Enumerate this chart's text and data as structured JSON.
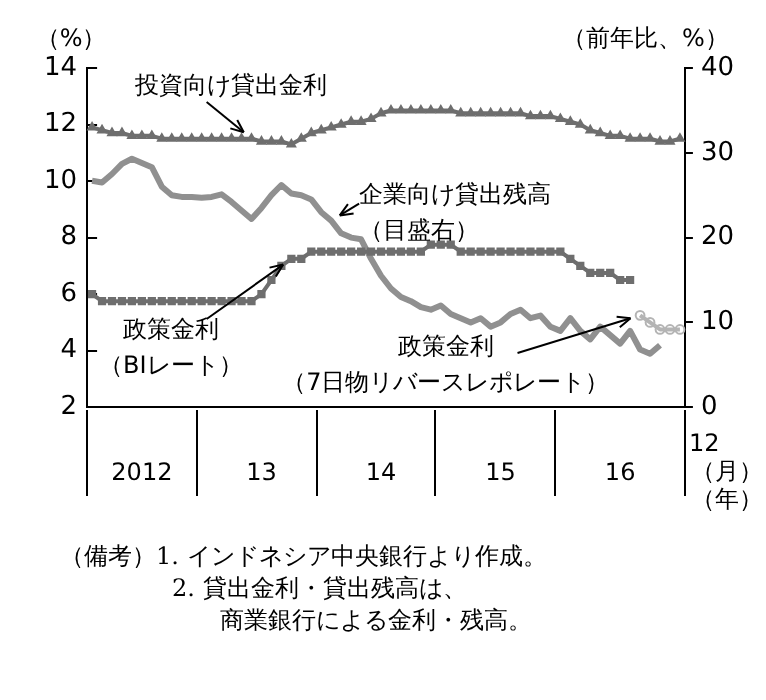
{
  "chart_data": {
    "type": "line",
    "categories": [
      null,
      null,
      null,
      null,
      null,
      "2012",
      null,
      null,
      null,
      null,
      null,
      null,
      null,
      null,
      null,
      null,
      null,
      "13",
      null,
      null,
      null,
      null,
      null,
      null,
      null,
      null,
      null,
      null,
      null,
      "14",
      null,
      null,
      null,
      null,
      null,
      null,
      null,
      null,
      null,
      null,
      null,
      "15",
      null,
      null,
      null,
      null,
      null,
      null,
      null,
      null,
      null,
      null,
      null,
      "16",
      null,
      null,
      null,
      null,
      null,
      null
    ],
    "series": [
      {
        "name": "投資向け貸出金利",
        "color": "#6e6e6e",
        "marker": "triangle",
        "values": [
          11.9,
          11.8,
          11.7,
          11.7,
          11.6,
          11.6,
          11.6,
          11.5,
          11.5,
          11.5,
          11.5,
          11.5,
          11.5,
          11.5,
          11.5,
          11.5,
          11.5,
          11.4,
          11.4,
          11.4,
          11.3,
          11.5,
          11.7,
          11.8,
          11.9,
          12.0,
          12.1,
          12.1,
          12.2,
          12.4,
          12.5,
          12.5,
          12.5,
          12.5,
          12.5,
          12.5,
          12.5,
          12.4,
          12.4,
          12.4,
          12.4,
          12.4,
          12.4,
          12.4,
          12.3,
          12.3,
          12.3,
          12.2,
          12.1,
          12.0,
          11.8,
          11.7,
          11.6,
          11.6,
          11.5,
          11.5,
          11.5,
          11.4,
          11.4,
          11.5
        ]
      },
      {
        "name": "企業向け貸出残高（目盛右）",
        "color": "#909090",
        "marker": "none",
        "axis": "y2",
        "values": [
          26.7,
          26.5,
          27.5,
          28.7,
          29.3,
          28.8,
          28.3,
          26,
          25,
          24.8,
          24.8,
          24.7,
          24.8,
          25.1,
          24.2,
          23.2,
          22.2,
          23.5,
          25,
          26.2,
          25.2,
          25,
          24.5,
          23,
          22,
          20.5,
          20,
          19.8,
          17.5,
          15.5,
          14,
          13,
          12.5,
          11.8,
          11.5,
          12,
          11,
          10.5,
          10,
          10.5,
          9.5,
          10,
          11,
          11.5,
          10.5,
          10.8,
          9.5,
          9,
          10.5,
          9,
          8,
          9.5,
          8.5,
          7.5,
          9,
          6.8,
          6.3,
          7.3,
          null,
          null
        ]
      },
      {
        "name": "政策金利（BIレート）",
        "color": "#6e6e6e",
        "marker": "square",
        "values": [
          6,
          5.75,
          5.75,
          5.75,
          5.75,
          5.75,
          5.75,
          5.75,
          5.75,
          5.75,
          5.75,
          5.75,
          5.75,
          5.75,
          5.75,
          5.75,
          5.75,
          6,
          6.5,
          7,
          7.25,
          7.25,
          7.5,
          7.5,
          7.5,
          7.5,
          7.5,
          7.5,
          7.5,
          7.5,
          7.5,
          7.5,
          7.5,
          7.5,
          7.75,
          7.75,
          7.75,
          7.5,
          7.5,
          7.5,
          7.5,
          7.5,
          7.5,
          7.5,
          7.5,
          7.5,
          7.5,
          7.5,
          7.25,
          7,
          6.75,
          6.75,
          6.75,
          6.5,
          6.5,
          null,
          null,
          null,
          null,
          null
        ]
      },
      {
        "name": "政策金利（7日物リバースレポレート）",
        "color": "#b4b4b4",
        "marker": "circle",
        "values": [
          null,
          null,
          null,
          null,
          null,
          null,
          null,
          null,
          null,
          null,
          null,
          null,
          null,
          null,
          null,
          null,
          null,
          null,
          null,
          null,
          null,
          null,
          null,
          null,
          null,
          null,
          null,
          null,
          null,
          null,
          null,
          null,
          null,
          null,
          null,
          null,
          null,
          null,
          null,
          null,
          null,
          null,
          null,
          null,
          null,
          null,
          null,
          null,
          null,
          null,
          null,
          null,
          null,
          null,
          null,
          5.25,
          5,
          4.75,
          4.75,
          4.75
        ]
      }
    ],
    "ylabel": "（%）",
    "y2label": "（前年比、%）",
    "xlabel": "（月）（年）",
    "ylim": [
      2,
      14
    ],
    "yticks": [
      2,
      4,
      6,
      8,
      10,
      12,
      14
    ],
    "y2lim": [
      0,
      40
    ],
    "y2ticks": [
      0,
      10,
      20,
      30,
      40
    ],
    "grid": false,
    "legend": false,
    "annotations": [
      "12",
      "（備考）1. インドネシア中央銀行より作成。",
      "2. 貸出金利・貸出残高は、商業銀行による金利・残高。"
    ]
  }
}
